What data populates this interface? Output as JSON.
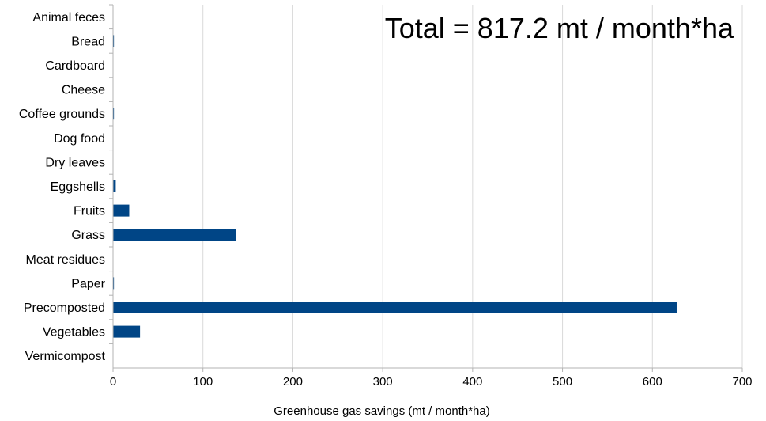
{
  "chart_data": {
    "type": "bar",
    "orientation": "horizontal",
    "annotation": "Total = 817.2 mt / month*ha",
    "xlabel": "Greenhouse gas savings (mt / month*ha)",
    "ylabel": "",
    "xlim": [
      0,
      700
    ],
    "xticks": [
      0,
      100,
      200,
      300,
      400,
      500,
      600,
      700
    ],
    "grid": true,
    "bar_color": "#004586",
    "categories": [
      "Animal feces",
      "Bread",
      "Cardboard",
      "Cheese",
      "Coffee grounds",
      "Dog food",
      "Dry leaves",
      "Eggshells",
      "Fruits",
      "Grass",
      "Meat residues",
      "Paper",
      "Precomposted",
      "Vegetables",
      "Vermicompost"
    ],
    "values": [
      0,
      1,
      0,
      0,
      1,
      0,
      0,
      3,
      18,
      137,
      0,
      1,
      627,
      30,
      0
    ]
  }
}
